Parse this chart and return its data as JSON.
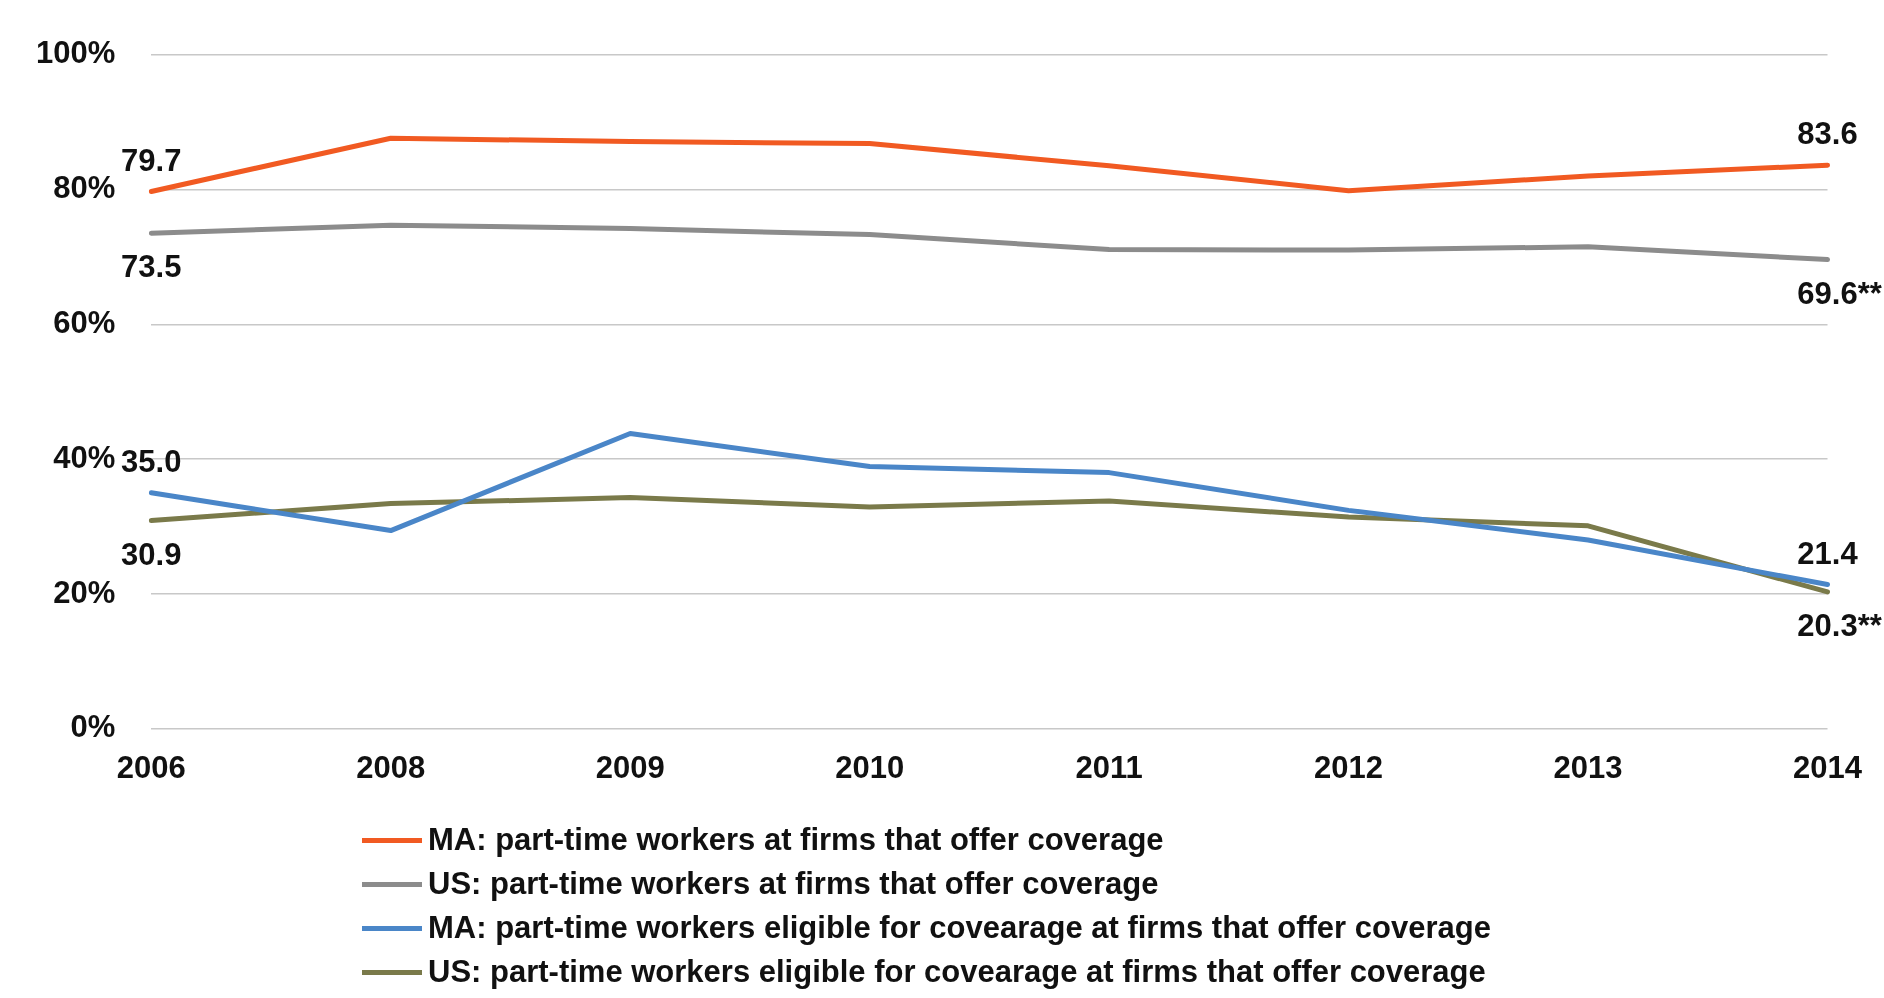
{
  "chart_data": {
    "type": "line",
    "categories": [
      "2006",
      "2008",
      "2009",
      "2010",
      "2011",
      "2012",
      "2013",
      "2014"
    ],
    "ylim": [
      0,
      100
    ],
    "yticks": [
      {
        "value": 0,
        "label": "0%"
      },
      {
        "value": 20,
        "label": "20%"
      },
      {
        "value": 40,
        "label": "40%"
      },
      {
        "value": 60,
        "label": "60%"
      },
      {
        "value": 80,
        "label": "80%"
      },
      {
        "value": 100,
        "label": "100%"
      }
    ],
    "grid": "y",
    "legend": "bottom",
    "marker": "none",
    "line_style": "solid",
    "series": [
      {
        "name": "MA: part-time workers at firms that offer coverage",
        "color": "#f15a22",
        "values": [
          79.7,
          87.6,
          87.1,
          86.8,
          83.5,
          79.8,
          82.0,
          83.6
        ],
        "value_labels": [
          "79.7",
          null,
          null,
          null,
          null,
          null,
          null,
          "83.6"
        ]
      },
      {
        "name": "US: part-time workers at firms that offer coverage",
        "color": "#8c8c8c",
        "values": [
          73.5,
          74.7,
          74.2,
          73.3,
          71.1,
          71.0,
          71.5,
          69.6
        ],
        "value_labels": [
          "73.5",
          null,
          null,
          null,
          null,
          null,
          null,
          "69.6**"
        ]
      },
      {
        "name": "MA: part-time workers eligible for covearage at firms that offer coverage",
        "color": "#4a86c8",
        "values": [
          35.0,
          29.4,
          43.8,
          38.9,
          38.0,
          32.4,
          28.0,
          21.4
        ],
        "value_labels": [
          "35.0",
          null,
          null,
          null,
          null,
          null,
          null,
          "21.4"
        ]
      },
      {
        "name": "US: part-time workers eligible for covearage at firms that offer coverage",
        "color": "#7a7a4a",
        "values": [
          30.9,
          33.4,
          34.3,
          32.9,
          33.8,
          31.4,
          30.1,
          20.3
        ],
        "value_labels": [
          "30.9",
          null,
          null,
          null,
          null,
          null,
          null,
          "20.3**"
        ]
      }
    ]
  }
}
